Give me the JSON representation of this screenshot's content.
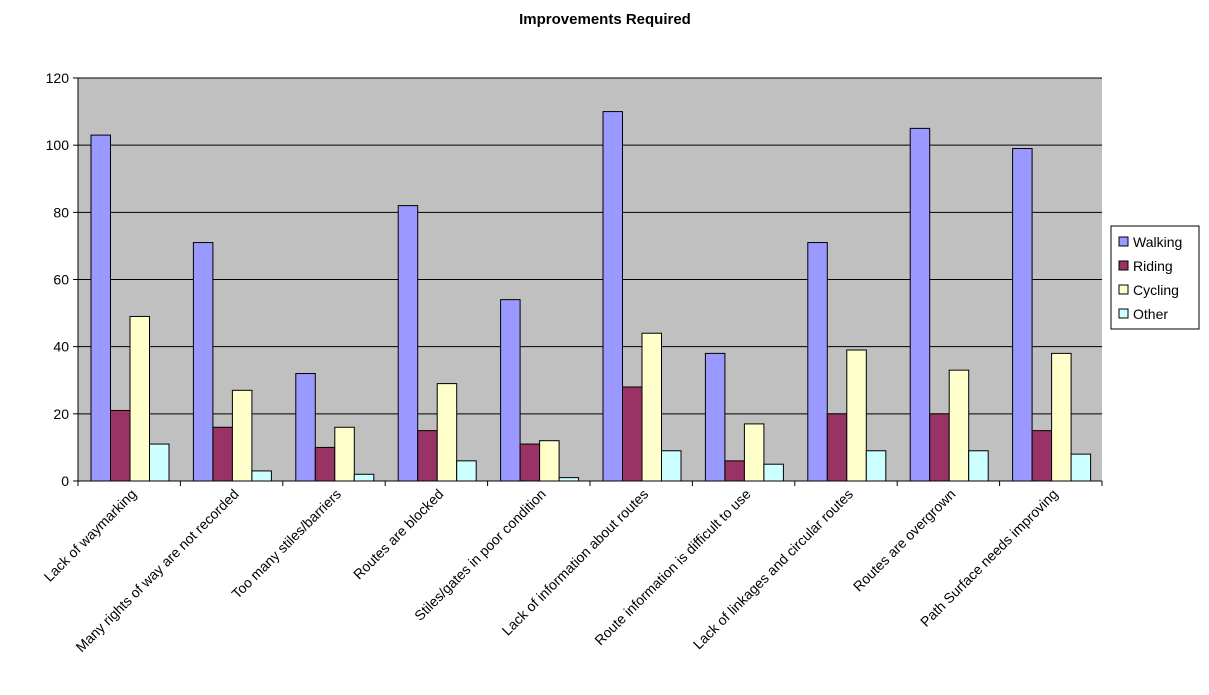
{
  "chart_data": {
    "type": "bar",
    "title": "Improvements Required",
    "xlabel": "",
    "ylabel": "",
    "ylim": [
      0,
      120
    ],
    "yticks": [
      "0",
      "20",
      "40",
      "60",
      "80",
      "100",
      "120"
    ],
    "grid": true,
    "legend_position": "right",
    "plot_background": "#c0c0c0",
    "categories": [
      "Lack of waymarking",
      "Many rights of way are not recorded",
      "Too many stiles/barriers",
      "Routes are blocked",
      "Stiles/gates in poor condition",
      "Lack of information about routes",
      "Route information is difficult to use",
      "Lack of linkages and circular routes",
      "Routes are overgrown",
      "Path Surface needs improving"
    ],
    "series": [
      {
        "name": "Walking",
        "color": "#9999ff",
        "values": [
          103,
          71,
          32,
          82,
          54,
          110,
          38,
          71,
          105,
          99
        ]
      },
      {
        "name": "Riding",
        "color": "#993366",
        "values": [
          21,
          16,
          10,
          15,
          11,
          28,
          6,
          20,
          20,
          15
        ]
      },
      {
        "name": "Cycling",
        "color": "#ffffcc",
        "values": [
          49,
          27,
          16,
          29,
          12,
          44,
          17,
          39,
          33,
          38
        ]
      },
      {
        "name": "Other",
        "color": "#ccffff",
        "values": [
          11,
          3,
          2,
          6,
          1,
          9,
          5,
          9,
          9,
          8
        ]
      }
    ]
  }
}
